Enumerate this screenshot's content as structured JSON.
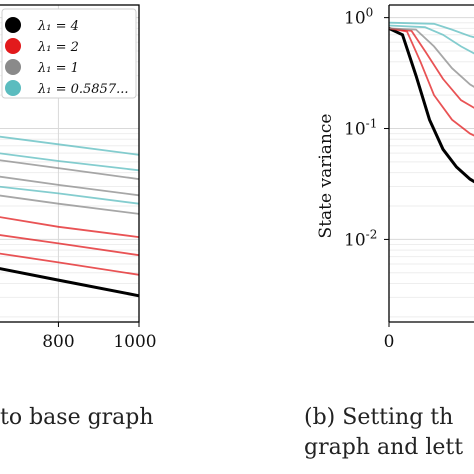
{
  "chart_data": [
    {
      "type": "line",
      "panel": "left (partially visible)",
      "xlabel": "",
      "ylabel": "",
      "x_ticks": [
        "800",
        "1000"
      ],
      "xlim": [
        650,
        1000
      ],
      "yscale": "log",
      "ylim": [
        0.0018,
        1.3
      ],
      "grid": true,
      "legend_position": "top-right",
      "legend": [
        {
          "label": "λ₁ = 4",
          "color": "#000000"
        },
        {
          "label": "λ₁ = 2",
          "color": "#e21a1c"
        },
        {
          "label": "λ₁ = 1",
          "color": "#8a8a8a"
        },
        {
          "label": "λ₁ = 0.5857...",
          "color": "#5bbcbf"
        }
      ],
      "series": [
        {
          "legend_index": 0,
          "x": [
            650,
            800,
            1000
          ],
          "y": [
            0.0055,
            0.0043,
            0.0031
          ]
        },
        {
          "legend_index": 1,
          "x": [
            650,
            800,
            1000
          ],
          "y": [
            0.0075,
            0.0062,
            0.0048
          ]
        },
        {
          "legend_index": 1,
          "x": [
            650,
            800,
            1000
          ],
          "y": [
            0.011,
            0.0092,
            0.0072
          ]
        },
        {
          "legend_index": 1,
          "x": [
            650,
            800,
            1000
          ],
          "y": [
            0.016,
            0.013,
            0.0105
          ]
        },
        {
          "legend_index": 2,
          "x": [
            650,
            800,
            1000
          ],
          "y": [
            0.025,
            0.021,
            0.017
          ]
        },
        {
          "legend_index": 2,
          "x": [
            650,
            800,
            1000
          ],
          "y": [
            0.037,
            0.031,
            0.025
          ]
        },
        {
          "legend_index": 2,
          "x": [
            650,
            800,
            1000
          ],
          "y": [
            0.052,
            0.044,
            0.035
          ]
        },
        {
          "legend_index": 3,
          "x": [
            650,
            800,
            1000
          ],
          "y": [
            0.03,
            0.026,
            0.021
          ]
        },
        {
          "legend_index": 3,
          "x": [
            650,
            800,
            1000
          ],
          "y": [
            0.06,
            0.051,
            0.042
          ]
        },
        {
          "legend_index": 3,
          "x": [
            650,
            800,
            1000
          ],
          "y": [
            0.085,
            0.072,
            0.058
          ]
        }
      ]
    },
    {
      "type": "line",
      "panel": "right (partially visible)",
      "ylabel": "State variance",
      "xlabel": "",
      "x_ticks": [
        "0"
      ],
      "xlim": [
        0,
        40
      ],
      "yscale": "log",
      "y_ticks": [
        "10^0",
        "10^-1",
        "10^-2"
      ],
      "ylim": [
        0.0018,
        1.3
      ],
      "grid": true,
      "series": [
        {
          "legend_index": 0,
          "x": [
            0,
            3,
            6,
            9,
            12,
            15,
            18,
            22
          ],
          "y": [
            0.8,
            0.7,
            0.3,
            0.12,
            0.065,
            0.045,
            0.035,
            0.028
          ]
        },
        {
          "legend_index": 1,
          "x": [
            0,
            4,
            7,
            10,
            14,
            18,
            22
          ],
          "y": [
            0.8,
            0.75,
            0.4,
            0.2,
            0.12,
            0.09,
            0.075
          ]
        },
        {
          "legend_index": 1,
          "x": [
            0,
            5,
            8,
            12,
            16,
            22
          ],
          "y": [
            0.8,
            0.76,
            0.5,
            0.28,
            0.18,
            0.13
          ]
        },
        {
          "legend_index": 2,
          "x": [
            0,
            6,
            10,
            14,
            18,
            22
          ],
          "y": [
            0.8,
            0.78,
            0.55,
            0.35,
            0.25,
            0.2
          ]
        },
        {
          "legend_index": 3,
          "x": [
            0,
            8,
            12,
            16,
            20,
            22
          ],
          "y": [
            0.85,
            0.82,
            0.7,
            0.55,
            0.45,
            0.42
          ]
        },
        {
          "legend_index": 3,
          "x": [
            0,
            10,
            14,
            18,
            22
          ],
          "y": [
            0.9,
            0.88,
            0.78,
            0.68,
            0.62
          ]
        }
      ]
    }
  ],
  "captions": {
    "left": "to base graph",
    "right_line1": "(b) Setting th",
    "right_line2": "graph and lett"
  }
}
